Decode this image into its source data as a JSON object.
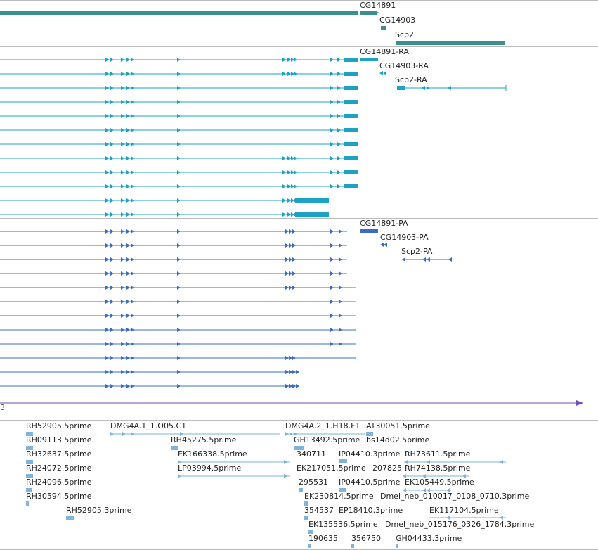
{
  "colors": {
    "gene": "#3a8f8f",
    "mrna": "#1ba3c6",
    "cds": "#3b6cc4",
    "scaffold": "#6b4fb5",
    "est": "#7fb3d9",
    "divider": "#bbbbbb"
  },
  "tracks": {
    "genes": {
      "labels": [
        "CG14891",
        "CG14903",
        "Scp2"
      ]
    },
    "transcripts": {
      "labels": [
        "CG14891-RA",
        "CG14903-RA",
        "Scp2-RA"
      ],
      "row_count": 12
    },
    "proteins": {
      "labels": [
        "CG14891-PA",
        "CG14903-PA",
        "Scp2-PA"
      ],
      "row_count": 12
    },
    "ests": {
      "labels": [
        "RH52905.5prime",
        "RH09113.5prime",
        "RH32637.5prime",
        "RH24072.5prime",
        "RH24096.5prime",
        "RH30594.5prime",
        "RH52905.3prime",
        "DMG4A.1_1.O05.C1",
        "RH45275.5prime",
        "EK166338.5prime",
        "LP03994.5prime",
        "DMG4A.2_1.H18.F1",
        "AT30051.5prime",
        "GH13492.5prime",
        "bs14d02.5prime",
        "340711",
        "IP04410.3prime",
        "RH73611.5prime",
        "EK217051.5prime",
        "207825",
        "RH74138.5prime",
        "295531",
        "IP04410.5prime",
        "EK105449.5prime",
        "EK230814.5prime",
        "Dmel_neb_010017_0108_0710.3prime",
        "354537",
        "EP18410.3prime",
        "EK117104.5prime",
        "EK135536.5prime",
        "Dmel_neb_015176_0326_1784.3prime",
        "190635",
        "356750",
        "GH04433.3prime"
      ]
    }
  },
  "scaffold_end_glyph": "3"
}
